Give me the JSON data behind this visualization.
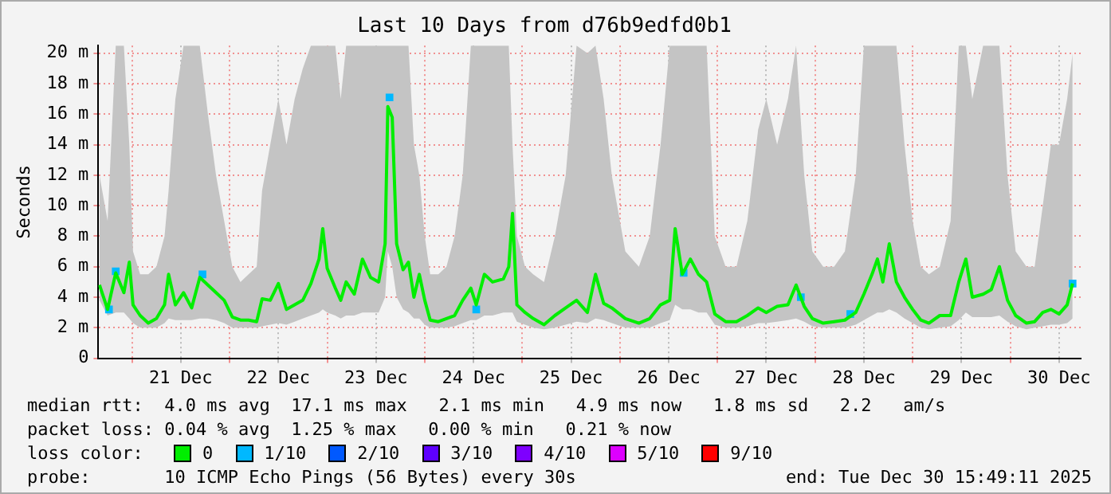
{
  "chart_data": {
    "type": "line",
    "title": "Last 10 Days from d76b9edfd0b1",
    "ylabel": "Seconds",
    "x": [
      "2025-12-20T16:00",
      "2025-12-20T18:00",
      "2025-12-20T20:00",
      "2025-12-20T22:00",
      "2025-12-20T23:20",
      "2025-12-21T00:15",
      "2025-12-21T02:00",
      "2025-12-21T04:00",
      "2025-12-21T06:00",
      "2025-12-21T08:00",
      "2025-12-21T09:00",
      "2025-12-21T10:40",
      "2025-12-21T12:40",
      "2025-12-21T14:40",
      "2025-12-21T16:40",
      "2025-12-21T18:40",
      "2025-12-21T20:40",
      "2025-12-21T22:40",
      "2025-12-22T00:40",
      "2025-12-22T02:40",
      "2025-12-22T04:40",
      "2025-12-22T06:40",
      "2025-12-22T08:00",
      "2025-12-22T10:00",
      "2025-12-22T12:00",
      "2025-12-22T14:00",
      "2025-12-22T16:00",
      "2025-12-22T18:00",
      "2025-12-22T20:00",
      "2025-12-22T22:00",
      "2025-12-22T22:55",
      "2025-12-23T00:00",
      "2025-12-23T02:00",
      "2025-12-23T03:20",
      "2025-12-23T04:40",
      "2025-12-23T06:40",
      "2025-12-23T08:40",
      "2025-12-23T10:40",
      "2025-12-23T12:40",
      "2025-12-23T14:15",
      "2025-12-23T14:55",
      "2025-12-23T16:00",
      "2025-12-23T17:05",
      "2025-12-23T18:40",
      "2025-12-23T20:00",
      "2025-12-23T21:20",
      "2025-12-23T22:40",
      "2025-12-24T00:00",
      "2025-12-24T01:20",
      "2025-12-24T03:20",
      "2025-12-24T05:20",
      "2025-12-24T07:20",
      "2025-12-24T09:20",
      "2025-12-24T11:20",
      "2025-12-24T12:40",
      "2025-12-24T14:40",
      "2025-12-24T16:40",
      "2025-12-24T19:20",
      "2025-12-24T20:40",
      "2025-12-24T21:35",
      "2025-12-24T22:40",
      "2025-12-25T00:40",
      "2025-12-25T02:40",
      "2025-12-25T05:20",
      "2025-12-25T08:00",
      "2025-12-25T10:40",
      "2025-12-25T13:20",
      "2025-12-25T16:00",
      "2025-12-25T18:00",
      "2025-12-25T20:00",
      "2025-12-25T22:00",
      "2025-12-26T01:20",
      "2025-12-26T04:40",
      "2025-12-26T07:20",
      "2025-12-26T10:00",
      "2025-12-26T12:15",
      "2025-12-26T13:35",
      "2025-12-26T15:20",
      "2025-12-26T17:20",
      "2025-12-26T19:20",
      "2025-12-26T21:20",
      "2025-12-26T23:20",
      "2025-12-27T02:00",
      "2025-12-27T04:40",
      "2025-12-27T07:20",
      "2025-12-27T10:00",
      "2025-12-27T12:00",
      "2025-12-27T14:40",
      "2025-12-27T17:20",
      "2025-12-27T19:20",
      "2025-12-27T21:20",
      "2025-12-27T23:20",
      "2025-12-28T02:00",
      "2025-12-28T04:40",
      "2025-12-28T07:20",
      "2025-12-28T10:00",
      "2025-12-28T12:00",
      "2025-12-28T14:00",
      "2025-12-28T15:20",
      "2025-12-28T16:40",
      "2025-12-28T18:15",
      "2025-12-28T20:00",
      "2025-12-28T22:00",
      "2025-12-29T00:00",
      "2025-12-29T02:00",
      "2025-12-29T04:00",
      "2025-12-29T06:40",
      "2025-12-29T09:20",
      "2025-12-29T11:20",
      "2025-12-29T13:05",
      "2025-12-29T14:40",
      "2025-12-29T17:20",
      "2025-12-29T19:20",
      "2025-12-29T21:20",
      "2025-12-29T23:20",
      "2025-12-30T01:20",
      "2025-12-30T04:00",
      "2025-12-30T06:00",
      "2025-12-30T08:00",
      "2025-12-30T10:00",
      "2025-12-30T12:00",
      "2025-12-30T14:00",
      "2025-12-30T15:20"
    ],
    "legend_title": "loss color:",
    "legend": "bottom",
    "series": [
      {
        "name": "0",
        "color": "#00ee00",
        "values": [
          4.8,
          3.2,
          5.6,
          4.3,
          6.3,
          3.5,
          2.8,
          2.3,
          2.6,
          3.5,
          5.5,
          3.5,
          4.3,
          3.3,
          5.3,
          4.8,
          4.3,
          3.8,
          2.7,
          2.5,
          2.5,
          2.4,
          3.9,
          3.8,
          4.9,
          3.2,
          3.5,
          3.8,
          4.9,
          6.5,
          8.5,
          5.9,
          4.6,
          3.8,
          5.0,
          4.2,
          6.5,
          5.3,
          5.0,
          7.5,
          16.5,
          15.8,
          7.5,
          5.8,
          6.3,
          4.0,
          5.5,
          3.8,
          2.5,
          2.4,
          2.6,
          2.8,
          3.8,
          4.6,
          3.5,
          5.5,
          5.0,
          5.2,
          6.0,
          9.5,
          3.5,
          3.0,
          2.6,
          2.2,
          2.8,
          3.3,
          3.8,
          3.0,
          5.5,
          3.6,
          3.3,
          2.6,
          2.3,
          2.6,
          3.5,
          3.8,
          8.5,
          5.5,
          6.5,
          5.5,
          5.0,
          2.9,
          2.4,
          2.4,
          2.8,
          3.3,
          3.0,
          3.4,
          3.5,
          4.8,
          3.4,
          2.6,
          2.3,
          2.4,
          2.5,
          3.0,
          4.2,
          5.5,
          6.5,
          5.0,
          7.5,
          5.0,
          4.0,
          3.2,
          2.5,
          2.3,
          2.8,
          2.8,
          5.0,
          6.5,
          4.0,
          4.2,
          4.5,
          6.0,
          3.8,
          2.8,
          2.3,
          2.4,
          3.0,
          3.2,
          2.9,
          3.5,
          4.9
        ],
        "upper": [
          12,
          9,
          20.5,
          20.5,
          14,
          7,
          5.5,
          5.5,
          6,
          8,
          11,
          17,
          20.5,
          20.5,
          20.5,
          16,
          12,
          9,
          6,
          5,
          5.5,
          6,
          11,
          14,
          17,
          14,
          17,
          19,
          20.5,
          20.5,
          20.5,
          20.5,
          20.5,
          17,
          20.5,
          20.5,
          20.5,
          20.5,
          20.5,
          20.5,
          20.5,
          20.5,
          20.5,
          20.5,
          20.5,
          14,
          12,
          8,
          5.5,
          5.5,
          6,
          8,
          12,
          20.5,
          20.5,
          20.5,
          20.5,
          20.5,
          20.5,
          14,
          8,
          6,
          5.5,
          5,
          8,
          12,
          20.5,
          20,
          20.5,
          17,
          12,
          7,
          6,
          8,
          14,
          20.5,
          20.5,
          20.5,
          20.5,
          20.5,
          20.5,
          8,
          6,
          6,
          9,
          15,
          17,
          14,
          17,
          20.5,
          12,
          7,
          6,
          6,
          7,
          12,
          20.5,
          20.5,
          20.5,
          20.5,
          20.5,
          20.5,
          14,
          9,
          6,
          5.5,
          6,
          9,
          20.5,
          20.5,
          17,
          20.5,
          20.5,
          20.5,
          12,
          7,
          6,
          6,
          10,
          14,
          14,
          17,
          20
        ],
        "lower": [
          3.8,
          2.8,
          3.0,
          3.0,
          2.6,
          2.3,
          2.0,
          2.0,
          2.0,
          2.3,
          2.6,
          2.5,
          2.5,
          2.5,
          2.6,
          2.6,
          2.5,
          2.3,
          2.0,
          2.0,
          2.0,
          2.0,
          2.1,
          2.2,
          2.3,
          2.2,
          2.4,
          2.6,
          2.8,
          3.0,
          3.2,
          3.0,
          2.8,
          2.6,
          2.8,
          2.8,
          3.0,
          3.0,
          3.0,
          4.0,
          7.0,
          6.0,
          4.0,
          3.2,
          3.0,
          2.6,
          2.6,
          2.2,
          2.0,
          2.0,
          2.0,
          2.1,
          2.3,
          2.5,
          2.5,
          2.8,
          2.8,
          3.0,
          3.0,
          3.0,
          2.4,
          2.2,
          2.0,
          1.9,
          2.0,
          2.2,
          2.4,
          2.3,
          2.6,
          2.5,
          2.3,
          2.0,
          2.0,
          2.0,
          2.3,
          2.5,
          3.5,
          3.2,
          3.2,
          3.0,
          3.0,
          2.2,
          2.0,
          2.0,
          2.1,
          2.3,
          2.3,
          2.4,
          2.5,
          2.6,
          2.4,
          2.1,
          2.0,
          2.0,
          2.0,
          2.2,
          2.5,
          2.8,
          3.0,
          3.0,
          3.2,
          3.0,
          2.6,
          2.3,
          2.0,
          1.9,
          2.0,
          2.1,
          2.5,
          3.0,
          2.7,
          2.7,
          2.7,
          2.8,
          2.4,
          2.1,
          1.9,
          2.0,
          2.1,
          2.2,
          2.2,
          2.3,
          2.6
        ]
      },
      {
        "name": "1/10",
        "color": "#00b8ff",
        "type": "scatter",
        "marker": "square",
        "x": [
          "2025-12-20T18:20",
          "2025-12-20T20:00",
          "2025-12-21T17:20",
          "2025-12-23T15:20",
          "2025-12-24T12:40",
          "2025-12-26T15:40",
          "2025-12-27T20:30",
          "2025-12-28T08:40",
          "2025-12-30T15:20"
        ],
        "values": [
          3.2,
          5.7,
          5.5,
          17.1,
          3.2,
          5.6,
          4.0,
          2.9,
          4.9
        ]
      },
      {
        "name": "2/10",
        "color": "#0059ff",
        "values": [
          null,
          null,
          null,
          null,
          null,
          null,
          null,
          null,
          null,
          null,
          null,
          null,
          null,
          null,
          null,
          null,
          null,
          null,
          null,
          null,
          null,
          null,
          null,
          null,
          null,
          null,
          null,
          null,
          null,
          null,
          null,
          null,
          null,
          null,
          null,
          null,
          null,
          null,
          null,
          null,
          null,
          null,
          null,
          null,
          null,
          null,
          null,
          null,
          null,
          null,
          null,
          null,
          null,
          null,
          null,
          null,
          null,
          null,
          null,
          null,
          null,
          null,
          null,
          null,
          null,
          null,
          null,
          null,
          null,
          null,
          null,
          null,
          null,
          null,
          null,
          null,
          null,
          null,
          null,
          null,
          null,
          null,
          null,
          null,
          null,
          null,
          null,
          null,
          null,
          null,
          null,
          null,
          null,
          null,
          null,
          null,
          null,
          null,
          null,
          null,
          null,
          null,
          null,
          null,
          null,
          null,
          null,
          null,
          null,
          null,
          null,
          null,
          null,
          null,
          null,
          null,
          null,
          null,
          null,
          null,
          null,
          null,
          null
        ]
      },
      {
        "name": "3/10",
        "color": "#5e00ff",
        "values": [
          null,
          null,
          null,
          null,
          null,
          null,
          null,
          null,
          null,
          null,
          null,
          null,
          null,
          null,
          null,
          null,
          null,
          null,
          null,
          null,
          null,
          null,
          null,
          null,
          null,
          null,
          null,
          null,
          null,
          null,
          null,
          null,
          null,
          null,
          null,
          null,
          null,
          null,
          null,
          null,
          null,
          null,
          null,
          null,
          null,
          null,
          null,
          null,
          null,
          null,
          null,
          null,
          null,
          null,
          null,
          null,
          null,
          null,
          null,
          null,
          null,
          null,
          null,
          null,
          null,
          null,
          null,
          null,
          null,
          null,
          null,
          null,
          null,
          null,
          null,
          null,
          null,
          null,
          null,
          null,
          null,
          null,
          null,
          null,
          null,
          null,
          null,
          null,
          null,
          null,
          null,
          null,
          null,
          null,
          null,
          null,
          null,
          null,
          null,
          null,
          null,
          null,
          null,
          null,
          null,
          null,
          null,
          null,
          null,
          null,
          null,
          null,
          null,
          null,
          null,
          null,
          null,
          null,
          null,
          null,
          null,
          null,
          null
        ]
      },
      {
        "name": "4/10",
        "color": "#7e00ff",
        "values": [
          null,
          null,
          null,
          null,
          null,
          null,
          null,
          null,
          null,
          null,
          null,
          null,
          null,
          null,
          null,
          null,
          null,
          null,
          null,
          null,
          null,
          null,
          null,
          null,
          null,
          null,
          null,
          null,
          null,
          null,
          null,
          null,
          null,
          null,
          null,
          null,
          null,
          null,
          null,
          null,
          null,
          null,
          null,
          null,
          null,
          null,
          null,
          null,
          null,
          null,
          null,
          null,
          null,
          null,
          null,
          null,
          null,
          null,
          null,
          null,
          null,
          null,
          null,
          null,
          null,
          null,
          null,
          null,
          null,
          null,
          null,
          null,
          null,
          null,
          null,
          null,
          null,
          null,
          null,
          null,
          null,
          null,
          null,
          null,
          null,
          null,
          null,
          null,
          null,
          null,
          null,
          null,
          null,
          null,
          null,
          null,
          null,
          null,
          null,
          null,
          null,
          null,
          null,
          null,
          null,
          null,
          null,
          null,
          null,
          null,
          null,
          null,
          null,
          null,
          null,
          null,
          null,
          null,
          null,
          null,
          null,
          null,
          null
        ]
      },
      {
        "name": "5/10",
        "color": "#dd00ff",
        "values": [
          null,
          null,
          null,
          null,
          null,
          null,
          null,
          null,
          null,
          null,
          null,
          null,
          null,
          null,
          null,
          null,
          null,
          null,
          null,
          null,
          null,
          null,
          null,
          null,
          null,
          null,
          null,
          null,
          null,
          null,
          null,
          null,
          null,
          null,
          null,
          null,
          null,
          null,
          null,
          null,
          null,
          null,
          null,
          null,
          null,
          null,
          null,
          null,
          null,
          null,
          null,
          null,
          null,
          null,
          null,
          null,
          null,
          null,
          null,
          null,
          null,
          null,
          null,
          null,
          null,
          null,
          null,
          null,
          null,
          null,
          null,
          null,
          null,
          null,
          null,
          null,
          null,
          null,
          null,
          null,
          null,
          null,
          null,
          null,
          null,
          null,
          null,
          null,
          null,
          null,
          null,
          null,
          null,
          null,
          null,
          null,
          null,
          null,
          null,
          null,
          null,
          null,
          null,
          null,
          null,
          null,
          null,
          null,
          null,
          null,
          null,
          null,
          null,
          null,
          null,
          null,
          null,
          null,
          null,
          null,
          null,
          null,
          null
        ]
      },
      {
        "name": "9/10",
        "color": "#ff0000",
        "values": [
          null,
          null,
          null,
          null,
          null,
          null,
          null,
          null,
          null,
          null,
          null,
          null,
          null,
          null,
          null,
          null,
          null,
          null,
          null,
          null,
          null,
          null,
          null,
          null,
          null,
          null,
          null,
          null,
          null,
          null,
          null,
          null,
          null,
          null,
          null,
          null,
          null,
          null,
          null,
          null,
          null,
          null,
          null,
          null,
          null,
          null,
          null,
          null,
          null,
          null,
          null,
          null,
          null,
          null,
          null,
          null,
          null,
          null,
          null,
          null,
          null,
          null,
          null,
          null,
          null,
          null,
          null,
          null,
          null,
          null,
          null,
          null,
          null,
          null,
          null,
          null,
          null,
          null,
          null,
          null,
          null,
          null,
          null,
          null,
          null,
          null,
          null,
          null,
          null,
          null,
          null,
          null,
          null,
          null,
          null,
          null,
          null,
          null,
          null,
          null,
          null,
          null,
          null,
          null,
          null,
          null,
          null,
          null,
          null,
          null,
          null,
          null,
          null,
          null,
          null,
          null,
          null,
          null,
          null,
          null,
          null,
          null,
          null
        ]
      }
    ],
    "marker": "none",
    "line_style": "solid",
    "grid": true,
    "ylim": [
      0,
      20.5
    ],
    "yticks": [
      0,
      {
        "value": 2,
        "label": "2 m"
      },
      {
        "value": 4,
        "label": "4 m"
      },
      {
        "value": 6,
        "label": "6 m"
      },
      {
        "value": 8,
        "label": "8 m"
      },
      {
        "value": 10,
        "label": "10 m"
      },
      {
        "value": 12,
        "label": "12 m"
      },
      {
        "value": 14,
        "label": "14 m"
      },
      {
        "value": 16,
        "label": "16 m"
      },
      {
        "value": 18,
        "label": "18 m"
      },
      {
        "value": 20,
        "label": "20 m"
      }
    ],
    "xlim": [
      "2025-12-20T15:43",
      "2025-12-30T17:20"
    ],
    "xticks": [
      {
        "value": "2025-12-21T00:00",
        "label": null
      },
      {
        "value": "2025-12-21T12:00",
        "label": "21 Dec"
      },
      {
        "value": "2025-12-22T00:00",
        "label": null
      },
      {
        "value": "2025-12-22T12:00",
        "label": "22 Dec"
      },
      {
        "value": "2025-12-23T00:00",
        "label": null
      },
      {
        "value": "2025-12-23T12:00",
        "label": "23 Dec"
      },
      {
        "value": "2025-12-24T00:00",
        "label": null
      },
      {
        "value": "2025-12-24T12:00",
        "label": "24 Dec"
      },
      {
        "value": "2025-12-25T00:00",
        "label": null
      },
      {
        "value": "2025-12-25T12:00",
        "label": "25 Dec"
      },
      {
        "value": "2025-12-26T00:00",
        "label": null
      },
      {
        "value": "2025-12-26T12:00",
        "label": "26 Dec"
      },
      {
        "value": "2025-12-27T00:00",
        "label": null
      },
      {
        "value": "2025-12-27T12:00",
        "label": "27 Dec"
      },
      {
        "value": "2025-12-28T00:00",
        "label": null
      },
      {
        "value": "2025-12-28T12:00",
        "label": "28 Dec"
      },
      {
        "value": "2025-12-29T00:00",
        "label": null
      },
      {
        "value": "2025-12-29T12:00",
        "label": "29 Dec"
      },
      {
        "value": "2025-12-30T00:00",
        "label": null
      },
      {
        "value": "2025-12-30T12:00",
        "label": "30 Dec"
      }
    ],
    "annotations": [
      "median rtt:  4.0 ms avg  17.1 ms max   2.1 ms min   4.9 ms now   1.8 ms sd   2.2   am/s",
      "packet loss: 0.04 % avg  1.25 % max   0.00 % min   0.21 % now",
      "probe:       10 ICMP Echo Pings (56 Bytes) every 30s",
      "end: Tue Dec 30 15:49:11 2025"
    ]
  }
}
